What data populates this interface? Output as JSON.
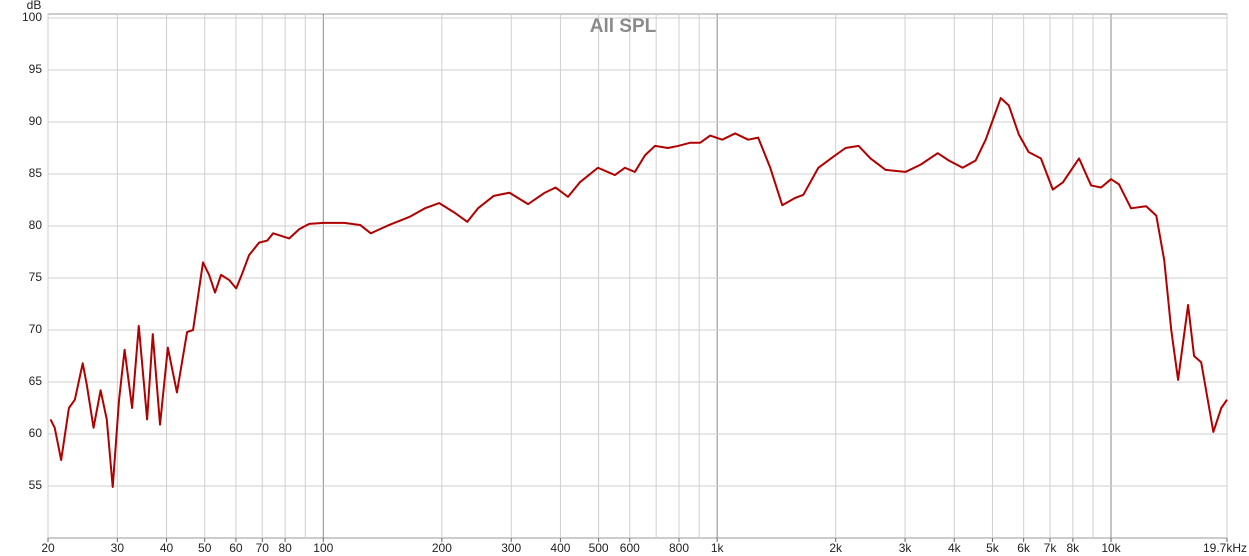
{
  "chart_data": {
    "type": "line",
    "title": "All SPL",
    "y_label": "dB",
    "x_log": true,
    "grid": true,
    "xlim": [
      20,
      19700
    ],
    "ylim": [
      50,
      100
    ],
    "xticks": [
      20,
      30,
      40,
      50,
      60,
      70,
      80,
      100,
      200,
      300,
      400,
      500,
      600,
      800,
      {
        "value": 1000,
        "label": "1k"
      },
      {
        "value": 2000,
        "label": "2k"
      },
      {
        "value": 3000,
        "label": "3k"
      },
      {
        "value": 4000,
        "label": "4k"
      },
      {
        "value": 5000,
        "label": "5k"
      },
      {
        "value": 6000,
        "label": "6k"
      },
      {
        "value": 7000,
        "label": "7k"
      },
      {
        "value": 8000,
        "label": "8k"
      },
      {
        "value": 10000,
        "label": "10k"
      },
      {
        "value": 19700,
        "label": "19.7kHz"
      }
    ],
    "x_minor_ticks": [
      90,
      700,
      900,
      9000
    ],
    "yticks": [
      55,
      60,
      65,
      70,
      75,
      80,
      85,
      90,
      95,
      100
    ],
    "series": [
      {
        "color": "#b00000",
        "x": [
          20.3,
          20.8,
          21.6,
          22.6,
          23.4,
          24.5,
          25.1,
          26.1,
          27.2,
          28.2,
          29.2,
          30.3,
          31.3,
          32.7,
          34.0,
          35.7,
          36.9,
          38.5,
          40.3,
          42.5,
          45.1,
          46.7,
          49.5,
          51.3,
          53.1,
          55.0,
          57.7,
          60.1,
          62.2,
          64.8,
          68.7,
          72.1,
          74.6,
          81.9,
          86.9,
          92.1,
          100,
          113,
          124,
          132,
          147,
          166,
          181,
          197,
          215,
          232,
          247,
          271,
          297,
          331,
          365,
          389,
          418,
          448,
          498,
          550,
          583,
          618,
          656,
          695,
          750,
          796,
          853,
          905,
          960,
          1030,
          1111,
          1199,
          1271,
          1364,
          1463,
          1578,
          1655,
          1807,
          1963,
          2118,
          2286,
          2451,
          2676,
          3007,
          3286,
          3631,
          3874,
          4200,
          4532,
          4806,
          5248,
          5500,
          5834,
          6180,
          6637,
          7117,
          7549,
          8294,
          8899,
          9436,
          10000,
          10480,
          11240,
          12280,
          13030,
          13650,
          14220,
          14800,
          15690,
          16250,
          16940,
          18190,
          19050,
          19700
        ],
        "values": [
          61.4,
          60.6,
          57.5,
          62.5,
          63.3,
          66.8,
          64.7,
          60.6,
          64.2,
          61.4,
          54.9,
          63.3,
          68.1,
          62.5,
          70.4,
          61.4,
          69.6,
          60.9,
          68.3,
          64.0,
          69.8,
          70.0,
          76.5,
          75.3,
          73.6,
          75.3,
          74.8,
          74.0,
          75.4,
          77.2,
          78.4,
          78.6,
          79.3,
          78.8,
          79.7,
          80.2,
          80.3,
          80.3,
          80.1,
          79.3,
          80.1,
          80.9,
          81.7,
          82.2,
          81.3,
          80.4,
          81.7,
          82.9,
          83.2,
          82.1,
          83.2,
          83.7,
          82.8,
          84.2,
          85.6,
          84.9,
          85.6,
          85.2,
          86.8,
          87.7,
          87.5,
          87.7,
          88.0,
          88.0,
          88.7,
          88.3,
          88.9,
          88.3,
          88.5,
          85.6,
          82.0,
          82.7,
          83.0,
          85.6,
          86.6,
          87.5,
          87.7,
          86.5,
          85.4,
          85.2,
          85.9,
          87.0,
          86.3,
          85.6,
          86.3,
          88.3,
          92.3,
          91.6,
          88.8,
          87.1,
          86.5,
          83.5,
          84.2,
          86.5,
          83.9,
          83.7,
          84.5,
          84.0,
          81.7,
          81.9,
          81.0,
          76.7,
          70.0,
          65.2,
          72.4,
          67.5,
          66.9,
          60.2,
          62.5,
          63.3
        ]
      }
    ]
  }
}
